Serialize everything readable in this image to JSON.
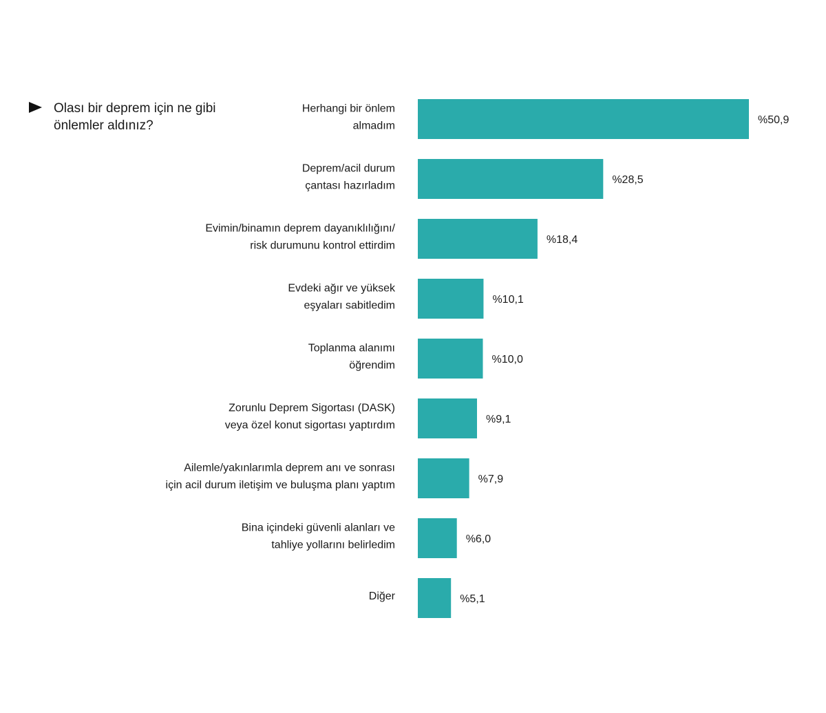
{
  "question": "Olası bir deprem için ne gibi önlemler aldınız?",
  "colors": {
    "bar": "#2aabab",
    "text": "#1a1a1a"
  },
  "chart_data": {
    "type": "bar",
    "orientation": "horizontal",
    "categories": [
      [
        "Herhangi bir önlem",
        "almadım"
      ],
      [
        "Deprem/acil durum",
        "çantası hazırladım"
      ],
      [
        "Evimin/binamın deprem dayanıklılığını/",
        "risk durumunu kontrol ettirdim"
      ],
      [
        "Evdeki ağır ve yüksek",
        "eşyaları sabitledim"
      ],
      [
        "Toplanma alanımı",
        "öğrendim"
      ],
      [
        "Zorunlu Deprem  Sigortası (DASK)",
        "veya özel konut sigortası yaptırdım"
      ],
      [
        "Ailemle/yakınlarımla deprem anı ve sonrası",
        "için acil durum iletişim ve buluşma planı yaptım"
      ],
      [
        "Bina içindeki güvenli alanları ve",
        "tahliye yollarını belirledim"
      ],
      [
        "Diğer"
      ]
    ],
    "values": [
      50.9,
      28.5,
      18.4,
      10.1,
      10.0,
      9.1,
      7.9,
      6.0,
      5.1
    ],
    "value_labels": [
      "%50,9",
      "%28,5",
      "%18,4",
      "%10,1",
      "%10,0",
      "%9,1",
      "%7,9",
      "%6,0",
      "%5,1"
    ],
    "unit": "%",
    "grid": false,
    "legend": "none"
  }
}
